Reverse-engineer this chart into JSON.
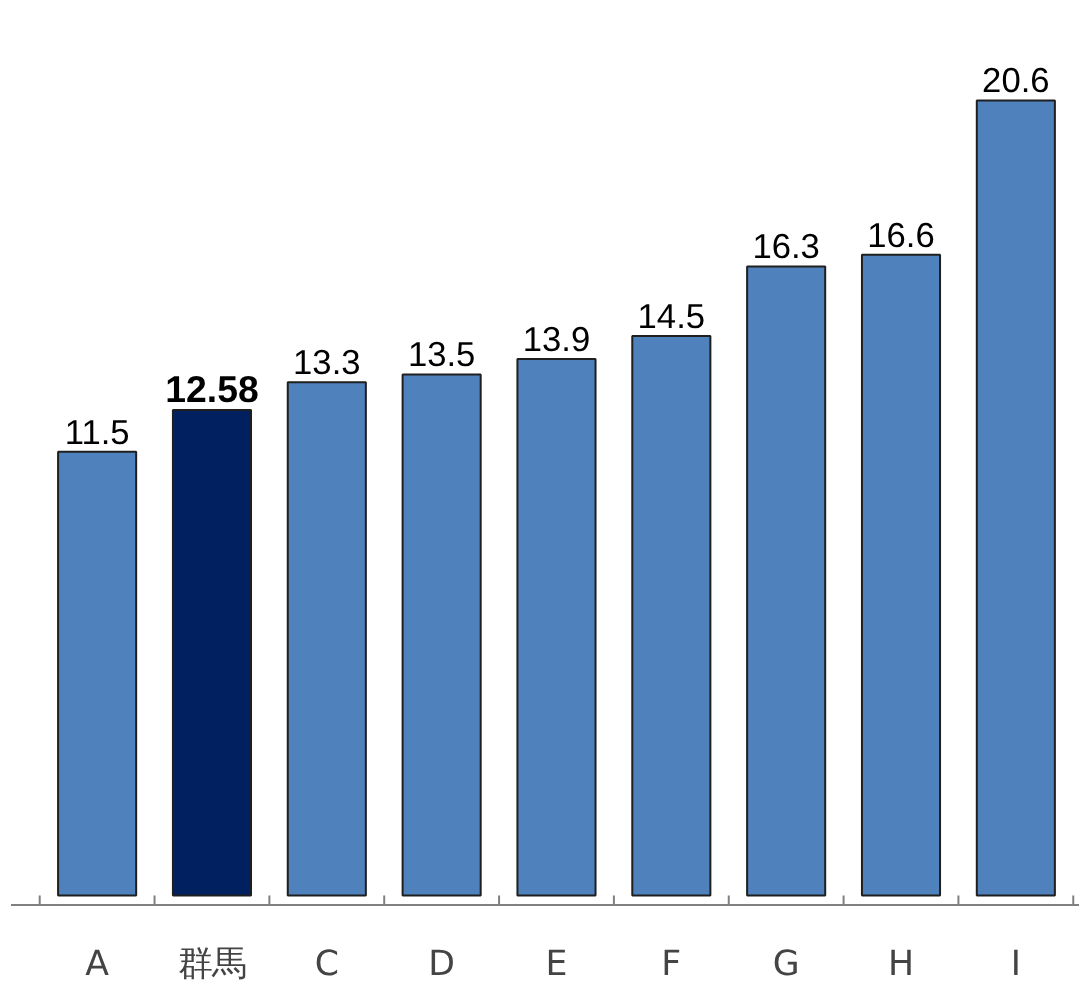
{
  "chart_data": {
    "type": "bar",
    "categories": [
      "A",
      "群馬",
      "C",
      "D",
      "E",
      "F",
      "G",
      "H",
      "I"
    ],
    "values": [
      11.5,
      12.58,
      13.3,
      13.5,
      13.9,
      14.5,
      16.3,
      16.6,
      20.6
    ],
    "colors": [
      "#4f81bd",
      "#002060",
      "#4f81bd",
      "#4f81bd",
      "#4f81bd",
      "#4f81bd",
      "#4f81bd",
      "#4f81bd",
      "#4f81bd"
    ],
    "data_labels": true,
    "grid": false
  }
}
